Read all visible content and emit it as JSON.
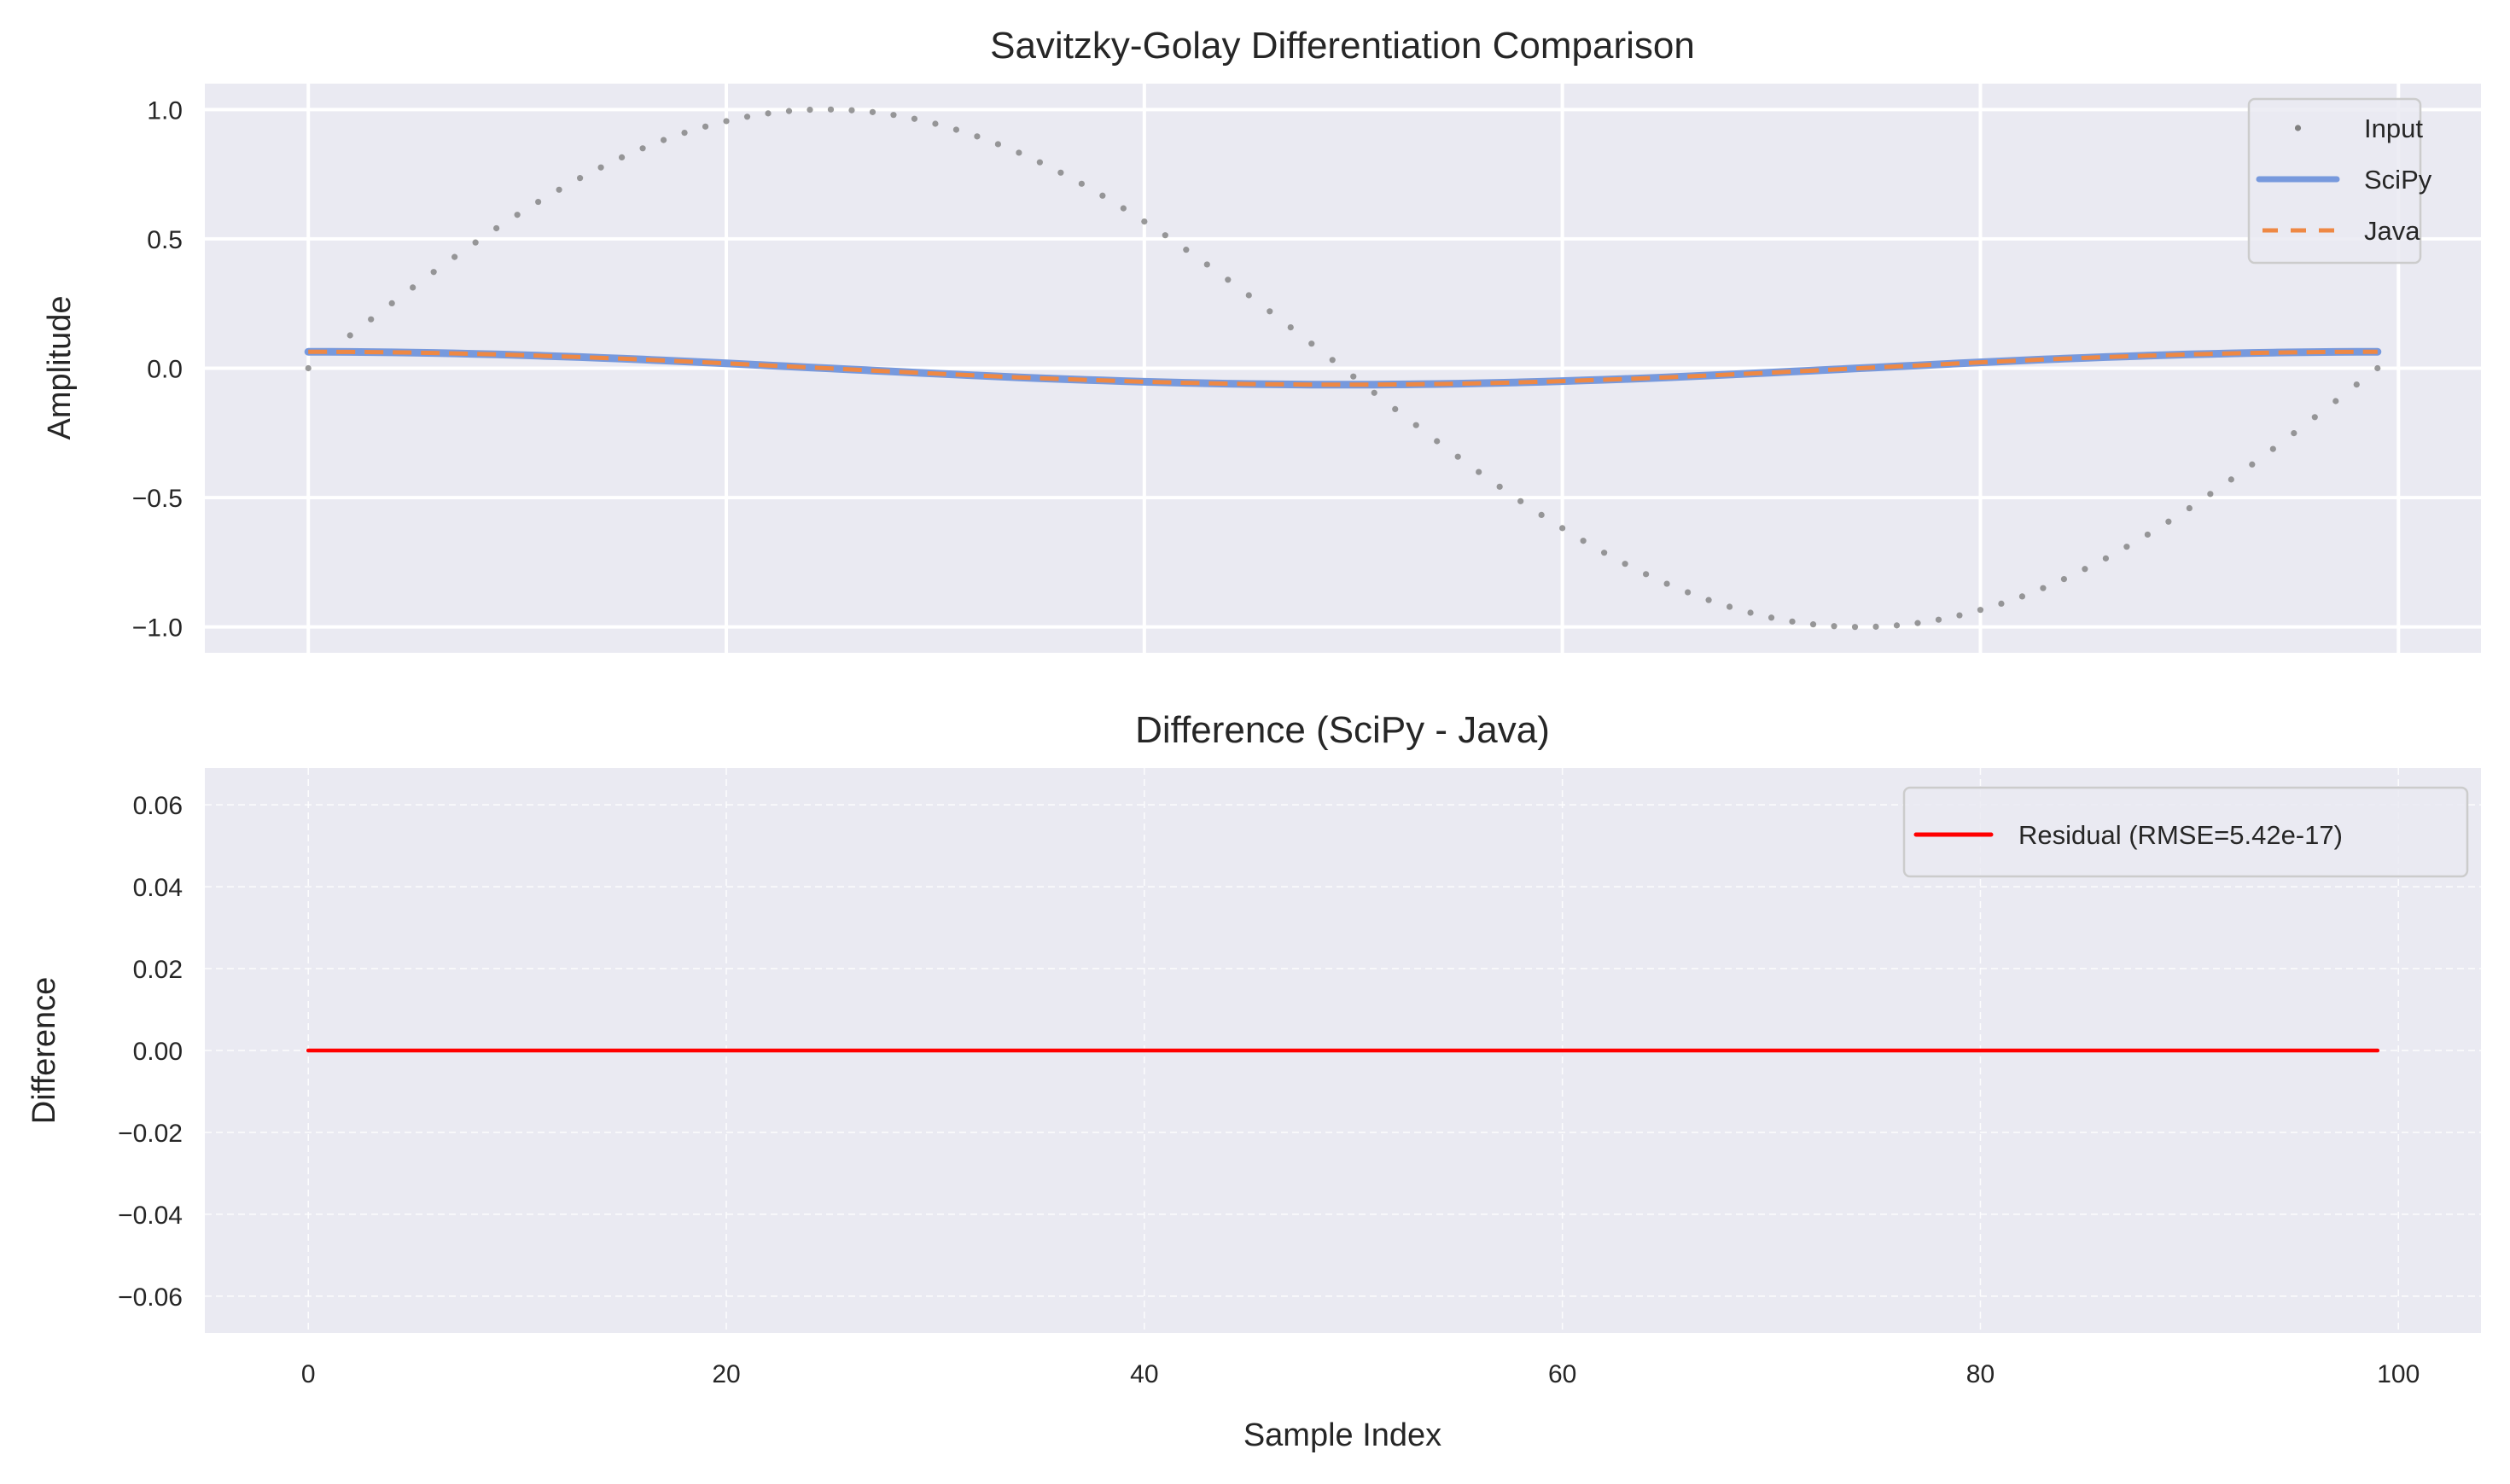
{
  "chart_data": [
    {
      "type": "line",
      "title": "Savitzky-Golay Differentiation Comparison",
      "xlabel": "",
      "ylabel": "Amplitude",
      "xlim": [
        -4.95,
        103.95
      ],
      "ylim": [
        -1.1,
        1.1
      ],
      "xticks": [
        0,
        20,
        40,
        60,
        80,
        100
      ],
      "xtick_labels_shown": false,
      "yticks": [
        1.0,
        0.5,
        0.0,
        -0.5,
        -1.0
      ],
      "ytick_labels": [
        "1.0",
        "0.5",
        "0.0",
        "−0.5",
        "−1.0"
      ],
      "grid": "solid",
      "legend_placement": "top-right",
      "background": "#eaeaf2",
      "series": [
        {
          "name": "Input",
          "style": "dotted-markers",
          "color": "#808080",
          "values": [
            0,
            0.063,
            0.127,
            0.189,
            0.251,
            0.312,
            0.372,
            0.43,
            0.486,
            0.541,
            0.593,
            0.643,
            0.69,
            0.735,
            0.776,
            0.815,
            0.85,
            0.882,
            0.91,
            0.934,
            0.955,
            0.972,
            0.985,
            0.994,
            0.999,
            1.0,
            0.997,
            0.99,
            0.979,
            0.964,
            0.945,
            0.922,
            0.896,
            0.866,
            0.833,
            0.796,
            0.756,
            0.713,
            0.667,
            0.618,
            0.567,
            0.514,
            0.458,
            0.401,
            0.342,
            0.282,
            0.22,
            0.158,
            0.095,
            0.032,
            -0.032,
            -0.095,
            -0.158,
            -0.22,
            -0.282,
            -0.342,
            -0.401,
            -0.458,
            -0.514,
            -0.567,
            -0.618,
            -0.667,
            -0.713,
            -0.756,
            -0.796,
            -0.833,
            -0.866,
            -0.896,
            -0.922,
            -0.945,
            -0.964,
            -0.979,
            -0.99,
            -0.997,
            -1.0,
            -0.999,
            -0.994,
            -0.985,
            -0.972,
            -0.955,
            -0.934,
            -0.91,
            -0.882,
            -0.85,
            -0.815,
            -0.776,
            -0.735,
            -0.69,
            -0.643,
            -0.593,
            -0.541,
            -0.486,
            -0.43,
            -0.372,
            -0.312,
            -0.251,
            -0.189,
            -0.127,
            -0.063,
            0
          ]
        },
        {
          "name": "SciPy",
          "style": "solid",
          "color": "#7799dd",
          "values": [
            0.0635,
            0.0634,
            0.063,
            0.0624,
            0.0615,
            0.0603,
            0.059,
            0.0573,
            0.0555,
            0.0534,
            0.0511,
            0.0486,
            0.046,
            0.0431,
            0.04,
            0.0368,
            0.0335,
            0.03,
            0.0264,
            0.0227,
            0.0189,
            0.015,
            0.011,
            0.007,
            0.003,
            -0.001,
            -0.005,
            -0.009,
            -0.013,
            -0.0169,
            -0.0208,
            -0.0245,
            -0.0282,
            -0.0318,
            -0.0352,
            -0.0385,
            -0.0416,
            -0.0445,
            -0.0473,
            -0.0499,
            -0.0523,
            -0.0545,
            -0.0564,
            -0.0582,
            -0.0597,
            -0.0609,
            -0.0619,
            -0.0627,
            -0.0632,
            -0.0635,
            -0.0635,
            -0.0632,
            -0.0627,
            -0.0619,
            -0.0609,
            -0.0597,
            -0.0582,
            -0.0564,
            -0.0545,
            -0.0523,
            -0.0499,
            -0.0473,
            -0.0445,
            -0.0416,
            -0.0385,
            -0.0352,
            -0.0318,
            -0.0282,
            -0.0245,
            -0.0208,
            -0.0169,
            -0.013,
            -0.009,
            -0.005,
            -0.001,
            0.003,
            0.007,
            0.011,
            0.015,
            0.0189,
            0.0227,
            0.0264,
            0.03,
            0.0335,
            0.0368,
            0.04,
            0.0431,
            0.046,
            0.0486,
            0.0511,
            0.0534,
            0.0555,
            0.0573,
            0.059,
            0.0603,
            0.0615,
            0.0624,
            0.063,
            0.0634,
            0.0635
          ]
        },
        {
          "name": "Java",
          "style": "dashed",
          "color": "#ee8844",
          "values": [
            0.0635,
            0.0634,
            0.063,
            0.0624,
            0.0615,
            0.0603,
            0.059,
            0.0573,
            0.0555,
            0.0534,
            0.0511,
            0.0486,
            0.046,
            0.0431,
            0.04,
            0.0368,
            0.0335,
            0.03,
            0.0264,
            0.0227,
            0.0189,
            0.015,
            0.011,
            0.007,
            0.003,
            -0.001,
            -0.005,
            -0.009,
            -0.013,
            -0.0169,
            -0.0208,
            -0.0245,
            -0.0282,
            -0.0318,
            -0.0352,
            -0.0385,
            -0.0416,
            -0.0445,
            -0.0473,
            -0.0499,
            -0.0523,
            -0.0545,
            -0.0564,
            -0.0582,
            -0.0597,
            -0.0609,
            -0.0619,
            -0.0627,
            -0.0632,
            -0.0635,
            -0.0635,
            -0.0632,
            -0.0627,
            -0.0619,
            -0.0609,
            -0.0597,
            -0.0582,
            -0.0564,
            -0.0545,
            -0.0523,
            -0.0499,
            -0.0473,
            -0.0445,
            -0.0416,
            -0.0385,
            -0.0352,
            -0.0318,
            -0.0282,
            -0.0245,
            -0.0208,
            -0.0169,
            -0.013,
            -0.009,
            -0.005,
            -0.001,
            0.003,
            0.007,
            0.011,
            0.015,
            0.0189,
            0.0227,
            0.0264,
            0.03,
            0.0335,
            0.0368,
            0.04,
            0.0431,
            0.046,
            0.0486,
            0.0511,
            0.0534,
            0.0555,
            0.0573,
            0.059,
            0.0603,
            0.0615,
            0.0624,
            0.063,
            0.0634,
            0.0635
          ]
        }
      ]
    },
    {
      "type": "line",
      "title": "Difference (SciPy - Java)",
      "xlabel": "Sample Index",
      "ylabel": "Difference",
      "xlim": [
        -4.95,
        103.95
      ],
      "ylim": [
        -0.069,
        0.069
      ],
      "xticks": [
        0,
        20,
        40,
        60,
        80,
        100
      ],
      "xtick_labels": [
        "0",
        "20",
        "40",
        "60",
        "80",
        "100"
      ],
      "yticks": [
        0.06,
        0.04,
        0.02,
        0.0,
        -0.02,
        -0.04,
        -0.06
      ],
      "ytick_labels": [
        "0.06",
        "0.04",
        "0.02",
        "0.00",
        "−0.02",
        "−0.04",
        "−0.06"
      ],
      "grid": "dashed",
      "legend_placement": "top-right",
      "background": "#eaeaf2",
      "series": [
        {
          "name": "Residual (RMSE=5.42e-17)",
          "style": "solid",
          "color": "#ff0000",
          "values": [
            0,
            0,
            0,
            0,
            0,
            0,
            0,
            0,
            0,
            0,
            0,
            0,
            0,
            0,
            0,
            0,
            0,
            0,
            0,
            0,
            0,
            0,
            0,
            0,
            0,
            0,
            0,
            0,
            0,
            0,
            0,
            0,
            0,
            0,
            0,
            0,
            0,
            0,
            0,
            0,
            0,
            0,
            0,
            0,
            0,
            0,
            0,
            0,
            0,
            0,
            0,
            0,
            0,
            0,
            0,
            0,
            0,
            0,
            0,
            0,
            0,
            0,
            0,
            0,
            0,
            0,
            0,
            0,
            0,
            0,
            0,
            0,
            0,
            0,
            0,
            0,
            0,
            0,
            0,
            0,
            0,
            0,
            0,
            0,
            0,
            0,
            0,
            0,
            0,
            0,
            0,
            0,
            0,
            0,
            0,
            0,
            0,
            0,
            0,
            0
          ]
        }
      ]
    }
  ]
}
